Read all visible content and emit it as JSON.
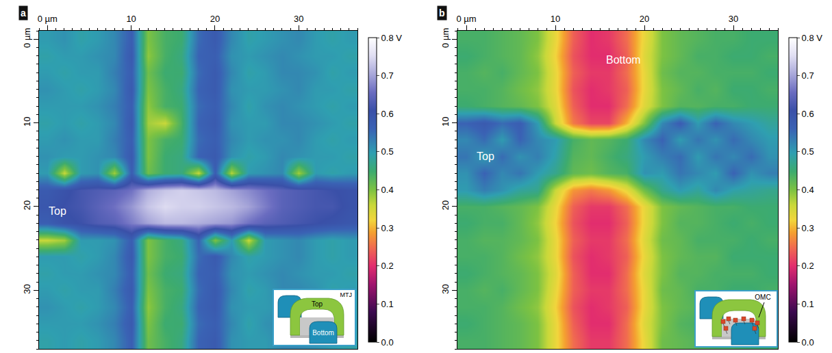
{
  "chart_data": [
    {
      "type": "heatmap",
      "label": "a",
      "x": [
        0,
        2,
        4,
        6,
        8,
        10,
        12,
        14,
        16,
        18,
        20,
        22,
        24,
        26,
        28,
        30,
        32,
        34,
        36
      ],
      "y": [
        0,
        2,
        4,
        6,
        8,
        10,
        12,
        14,
        16,
        18,
        20,
        22,
        24,
        26,
        28,
        30,
        32,
        34,
        36
      ],
      "z": [
        [
          0.5,
          0.51,
          0.49,
          0.5,
          0.52,
          0.57,
          0.4,
          0.44,
          0.45,
          0.55,
          0.58,
          0.52,
          0.49,
          0.5,
          0.51,
          0.52,
          0.5,
          0.49,
          0.5
        ],
        [
          0.49,
          0.5,
          0.5,
          0.51,
          0.52,
          0.58,
          0.39,
          0.44,
          0.46,
          0.56,
          0.57,
          0.51,
          0.5,
          0.51,
          0.52,
          0.51,
          0.5,
          0.5,
          0.49
        ],
        [
          0.5,
          0.49,
          0.5,
          0.5,
          0.53,
          0.57,
          0.41,
          0.45,
          0.45,
          0.55,
          0.58,
          0.52,
          0.49,
          0.5,
          0.52,
          0.52,
          0.51,
          0.49,
          0.5
        ],
        [
          0.51,
          0.5,
          0.49,
          0.5,
          0.52,
          0.58,
          0.4,
          0.44,
          0.46,
          0.56,
          0.58,
          0.51,
          0.5,
          0.5,
          0.51,
          0.52,
          0.5,
          0.5,
          0.49
        ],
        [
          0.5,
          0.5,
          0.5,
          0.51,
          0.53,
          0.57,
          0.39,
          0.44,
          0.45,
          0.55,
          0.57,
          0.52,
          0.49,
          0.51,
          0.52,
          0.51,
          0.5,
          0.49,
          0.5
        ],
        [
          0.49,
          0.5,
          0.49,
          0.5,
          0.52,
          0.58,
          0.38,
          0.36,
          0.44,
          0.56,
          0.58,
          0.51,
          0.5,
          0.5,
          0.52,
          0.52,
          0.51,
          0.5,
          0.49
        ],
        [
          0.5,
          0.51,
          0.5,
          0.5,
          0.53,
          0.57,
          0.4,
          0.44,
          0.45,
          0.55,
          0.57,
          0.52,
          0.5,
          0.51,
          0.51,
          0.52,
          0.5,
          0.49,
          0.5
        ],
        [
          0.51,
          0.5,
          0.5,
          0.51,
          0.52,
          0.58,
          0.4,
          0.45,
          0.46,
          0.56,
          0.58,
          0.51,
          0.49,
          0.5,
          0.52,
          0.51,
          0.5,
          0.5,
          0.49
        ],
        [
          0.5,
          0.36,
          0.5,
          0.51,
          0.38,
          0.57,
          0.41,
          0.45,
          0.46,
          0.36,
          0.57,
          0.37,
          0.5,
          0.51,
          0.52,
          0.38,
          0.5,
          0.49,
          0.5
        ],
        [
          0.58,
          0.6,
          0.62,
          0.63,
          0.64,
          0.66,
          0.71,
          0.73,
          0.74,
          0.73,
          0.72,
          0.7,
          0.68,
          0.66,
          0.64,
          0.63,
          0.62,
          0.61,
          0.6
        ],
        [
          0.59,
          0.61,
          0.62,
          0.64,
          0.66,
          0.69,
          0.73,
          0.75,
          0.74,
          0.74,
          0.73,
          0.72,
          0.7,
          0.67,
          0.64,
          0.63,
          0.62,
          0.62,
          0.6
        ],
        [
          0.57,
          0.6,
          0.61,
          0.63,
          0.64,
          0.67,
          0.7,
          0.72,
          0.72,
          0.71,
          0.7,
          0.69,
          0.66,
          0.64,
          0.63,
          0.62,
          0.61,
          0.6,
          0.59
        ],
        [
          0.36,
          0.38,
          0.5,
          0.5,
          0.51,
          0.57,
          0.4,
          0.44,
          0.46,
          0.56,
          0.4,
          0.5,
          0.36,
          0.5,
          0.51,
          0.52,
          0.5,
          0.49,
          0.5
        ],
        [
          0.5,
          0.5,
          0.49,
          0.5,
          0.52,
          0.58,
          0.4,
          0.44,
          0.45,
          0.55,
          0.58,
          0.52,
          0.49,
          0.5,
          0.51,
          0.52,
          0.5,
          0.49,
          0.5
        ],
        [
          0.49,
          0.5,
          0.5,
          0.51,
          0.52,
          0.57,
          0.41,
          0.45,
          0.46,
          0.56,
          0.57,
          0.51,
          0.5,
          0.51,
          0.52,
          0.51,
          0.5,
          0.5,
          0.49
        ],
        [
          0.5,
          0.49,
          0.5,
          0.5,
          0.53,
          0.58,
          0.4,
          0.44,
          0.45,
          0.55,
          0.58,
          0.52,
          0.49,
          0.5,
          0.52,
          0.52,
          0.51,
          0.49,
          0.5
        ],
        [
          0.51,
          0.5,
          0.49,
          0.5,
          0.52,
          0.57,
          0.39,
          0.44,
          0.46,
          0.56,
          0.58,
          0.51,
          0.5,
          0.5,
          0.51,
          0.52,
          0.5,
          0.5,
          0.49
        ],
        [
          0.5,
          0.5,
          0.5,
          0.51,
          0.53,
          0.58,
          0.4,
          0.45,
          0.45,
          0.55,
          0.57,
          0.52,
          0.49,
          0.51,
          0.52,
          0.51,
          0.5,
          0.49,
          0.5
        ],
        [
          0.49,
          0.5,
          0.49,
          0.5,
          0.52,
          0.57,
          0.41,
          0.44,
          0.46,
          0.56,
          0.58,
          0.51,
          0.5,
          0.5,
          0.52,
          0.52,
          0.51,
          0.5,
          0.49
        ]
      ],
      "xlim": [
        -1,
        37
      ],
      "ylim": [
        -1,
        37
      ],
      "xticks": [
        {
          "value": 0,
          "label": "0 µm"
        },
        10,
        20,
        30
      ],
      "yticks": [
        {
          "value": 0,
          "label": "0 µm"
        },
        10,
        20,
        30
      ],
      "color_range": [
        0,
        0.8
      ],
      "color_ticks": [
        {
          "value": 0,
          "label": "0.0"
        },
        0.1,
        0.2,
        0.3,
        0.4,
        0.5,
        0.6,
        0.7,
        {
          "value": 0.8,
          "label": "0.8 V"
        }
      ],
      "annotations": [
        {
          "text": "Top",
          "x": 0,
          "y": 20.5
        }
      ],
      "inset": {
        "title": "MTJ",
        "labels": [
          "Top",
          "Bottom"
        ]
      }
    },
    {
      "type": "heatmap",
      "label": "b",
      "x": [
        0,
        2,
        4,
        6,
        8,
        10,
        12,
        14,
        16,
        18,
        20,
        22,
        24,
        26,
        28,
        30,
        32,
        34
      ],
      "y": [
        0,
        2,
        4,
        6,
        8,
        10,
        12,
        14,
        16,
        18,
        20,
        22,
        24,
        26,
        28,
        30,
        32,
        34,
        36
      ],
      "z": [
        [
          0.44,
          0.44,
          0.43,
          0.42,
          0.4,
          0.33,
          0.24,
          0.2,
          0.21,
          0.25,
          0.33,
          0.4,
          0.42,
          0.43,
          0.44,
          0.44,
          0.45,
          0.45
        ],
        [
          0.45,
          0.44,
          0.43,
          0.42,
          0.39,
          0.32,
          0.23,
          0.2,
          0.2,
          0.24,
          0.34,
          0.4,
          0.42,
          0.44,
          0.44,
          0.45,
          0.45,
          0.44
        ],
        [
          0.44,
          0.43,
          0.44,
          0.42,
          0.4,
          0.33,
          0.24,
          0.21,
          0.21,
          0.25,
          0.33,
          0.41,
          0.43,
          0.43,
          0.44,
          0.44,
          0.44,
          0.45
        ],
        [
          0.44,
          0.44,
          0.43,
          0.41,
          0.39,
          0.33,
          0.23,
          0.2,
          0.21,
          0.24,
          0.33,
          0.4,
          0.42,
          0.44,
          0.43,
          0.45,
          0.45,
          0.44
        ],
        [
          0.45,
          0.44,
          0.43,
          0.42,
          0.4,
          0.34,
          0.24,
          0.2,
          0.2,
          0.25,
          0.34,
          0.4,
          0.43,
          0.43,
          0.44,
          0.44,
          0.45,
          0.45
        ],
        [
          0.56,
          0.58,
          0.55,
          0.57,
          0.5,
          0.36,
          0.26,
          0.22,
          0.22,
          0.3,
          0.4,
          0.52,
          0.57,
          0.5,
          0.56,
          0.52,
          0.5,
          0.48
        ],
        [
          0.52,
          0.55,
          0.5,
          0.56,
          0.52,
          0.5,
          0.44,
          0.42,
          0.43,
          0.45,
          0.52,
          0.56,
          0.5,
          0.54,
          0.51,
          0.55,
          0.52,
          0.5
        ],
        [
          0.54,
          0.5,
          0.55,
          0.51,
          0.53,
          0.49,
          0.43,
          0.42,
          0.44,
          0.46,
          0.5,
          0.53,
          0.55,
          0.5,
          0.54,
          0.52,
          0.55,
          0.51
        ],
        [
          0.51,
          0.56,
          0.52,
          0.54,
          0.5,
          0.47,
          0.42,
          0.41,
          0.43,
          0.44,
          0.51,
          0.5,
          0.54,
          0.52,
          0.5,
          0.56,
          0.51,
          0.53
        ],
        [
          0.5,
          0.53,
          0.51,
          0.48,
          0.47,
          0.36,
          0.28,
          0.26,
          0.28,
          0.33,
          0.41,
          0.47,
          0.5,
          0.48,
          0.52,
          0.49,
          0.48,
          0.47
        ],
        [
          0.44,
          0.44,
          0.43,
          0.42,
          0.4,
          0.33,
          0.24,
          0.21,
          0.21,
          0.25,
          0.33,
          0.4,
          0.42,
          0.43,
          0.44,
          0.44,
          0.45,
          0.45
        ],
        [
          0.45,
          0.44,
          0.44,
          0.42,
          0.39,
          0.32,
          0.23,
          0.2,
          0.2,
          0.24,
          0.33,
          0.4,
          0.43,
          0.43,
          0.44,
          0.45,
          0.44,
          0.45
        ],
        [
          0.44,
          0.43,
          0.43,
          0.42,
          0.4,
          0.33,
          0.24,
          0.21,
          0.21,
          0.25,
          0.34,
          0.41,
          0.42,
          0.44,
          0.44,
          0.44,
          0.45,
          0.44
        ],
        [
          0.44,
          0.44,
          0.43,
          0.41,
          0.39,
          0.33,
          0.23,
          0.2,
          0.21,
          0.24,
          0.33,
          0.4,
          0.42,
          0.43,
          0.43,
          0.45,
          0.45,
          0.45
        ],
        [
          0.45,
          0.44,
          0.43,
          0.42,
          0.4,
          0.34,
          0.24,
          0.2,
          0.2,
          0.25,
          0.34,
          0.4,
          0.43,
          0.43,
          0.44,
          0.44,
          0.44,
          0.45
        ],
        [
          0.44,
          0.43,
          0.44,
          0.42,
          0.4,
          0.33,
          0.24,
          0.21,
          0.21,
          0.25,
          0.33,
          0.41,
          0.42,
          0.44,
          0.44,
          0.45,
          0.45,
          0.44
        ],
        [
          0.44,
          0.44,
          0.43,
          0.41,
          0.39,
          0.32,
          0.23,
          0.2,
          0.21,
          0.24,
          0.33,
          0.4,
          0.42,
          0.43,
          0.44,
          0.44,
          0.45,
          0.45
        ],
        [
          0.45,
          0.44,
          0.43,
          0.42,
          0.4,
          0.33,
          0.24,
          0.2,
          0.2,
          0.25,
          0.34,
          0.4,
          0.43,
          0.44,
          0.44,
          0.45,
          0.44,
          0.45
        ],
        [
          0.44,
          0.44,
          0.43,
          0.42,
          0.4,
          0.33,
          0.25,
          0.21,
          0.21,
          0.25,
          0.33,
          0.41,
          0.42,
          0.43,
          0.44,
          0.44,
          0.45,
          0.45
        ]
      ],
      "xlim": [
        -1,
        35
      ],
      "ylim": [
        -1,
        37
      ],
      "xticks": [
        {
          "value": 0,
          "label": "0 µm"
        },
        10,
        20,
        30
      ],
      "yticks": [
        {
          "value": 0,
          "label": "0 µm"
        },
        10,
        20,
        30
      ],
      "color_range": [
        0,
        0.8
      ],
      "color_ticks": [
        {
          "value": 0,
          "label": "0.0"
        },
        0.1,
        0.2,
        0.3,
        0.4,
        0.5,
        0.6,
        0.7,
        {
          "value": 0.8,
          "label": "0.8 V"
        }
      ],
      "annotations": [
        {
          "text": "Bottom",
          "x": 15.5,
          "y": 2.5
        },
        {
          "text": "Top",
          "x": 1,
          "y": 14
        }
      ],
      "inset": {
        "title": "OMC",
        "labels": []
      }
    }
  ]
}
